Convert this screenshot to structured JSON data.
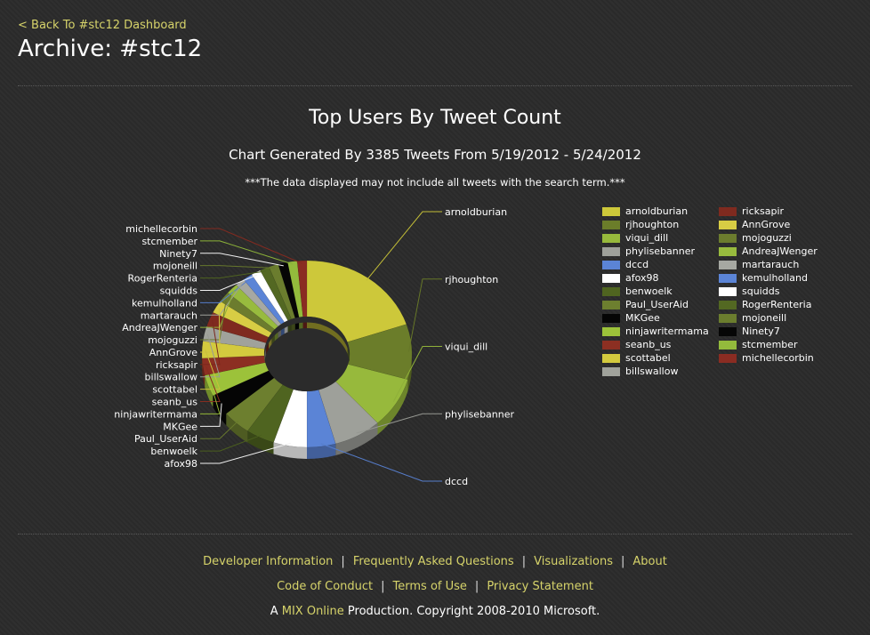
{
  "nav": {
    "back_label": "< Back To #stc12 Dashboard"
  },
  "page": {
    "title": "Archive: #stc12"
  },
  "chart_data": {
    "type": "pie",
    "style": "3d-doughnut",
    "title": "Top Users By Tweet Count",
    "subtitle": "Chart Generated By 3385 Tweets From 5/19/2012 - 5/24/2012",
    "note": "***The data displayed may not include all tweets with the search term.***",
    "legend_position": "right",
    "slices": [
      {
        "label": "arnoldburian",
        "value": 54,
        "color": "#cdc83a"
      },
      {
        "label": "rjhoughton",
        "value": 26,
        "color": "#6b7d2a"
      },
      {
        "label": "viqui_dill",
        "value": 24,
        "color": "#97b93c"
      },
      {
        "label": "phylisebanner",
        "value": 20,
        "color": "#9ea09a"
      },
      {
        "label": "dccd",
        "value": 12,
        "color": "#5b84d6"
      },
      {
        "label": "afox98",
        "value": 14,
        "color": "#ffffff"
      },
      {
        "label": "benwoelk",
        "value": 12,
        "color": "#4f6420"
      },
      {
        "label": "Paul_UserAid",
        "value": 12,
        "color": "#6d7f2f"
      },
      {
        "label": "MKGee",
        "value": 10,
        "color": "#050505"
      },
      {
        "label": "ninjawritermama",
        "value": 10,
        "color": "#9cc23a"
      },
      {
        "label": "seanb_us",
        "value": 8,
        "color": "#8c2f22"
      },
      {
        "label": "scottabel",
        "value": 8,
        "color": "#d3ca3e"
      },
      {
        "label": "billswallow",
        "value": 7,
        "color": "#a0a29b"
      },
      {
        "label": "ricksapir",
        "value": 7,
        "color": "#7f2a1f"
      },
      {
        "label": "AnnGrove",
        "value": 6,
        "color": "#d8cd44"
      },
      {
        "label": "mojoguzzi",
        "value": 5,
        "color": "#6c7c2e"
      },
      {
        "label": "AndreaJWenger",
        "value": 5,
        "color": "#98bb3e"
      },
      {
        "label": "martarauch",
        "value": 4,
        "color": "#a6a8a2"
      },
      {
        "label": "kemulholland",
        "value": 4,
        "color": "#5b84d6"
      },
      {
        "label": "squidds",
        "value": 4,
        "color": "#ffffff"
      },
      {
        "label": "RogerRenteria",
        "value": 4,
        "color": "#536822"
      },
      {
        "label": "mojoneill",
        "value": 4,
        "color": "#6b7d2e"
      },
      {
        "label": "Ninety7",
        "value": 4,
        "color": "#060606"
      },
      {
        "label": "stcmember",
        "value": 4,
        "color": "#93bb3c"
      },
      {
        "label": "michellecorbin",
        "value": 4,
        "color": "#8a2c22"
      }
    ]
  },
  "footer": {
    "row1": [
      "Developer Information",
      "Frequently Asked Questions",
      "Visualizations",
      "About"
    ],
    "row2": [
      "Code of Conduct",
      "Terms of Use",
      "Privacy Statement"
    ],
    "separator": "|",
    "copyright": {
      "prefix": "A ",
      "link": "MIX Online",
      "suffix": " Production. Copyright 2008-2010 Microsoft."
    }
  }
}
